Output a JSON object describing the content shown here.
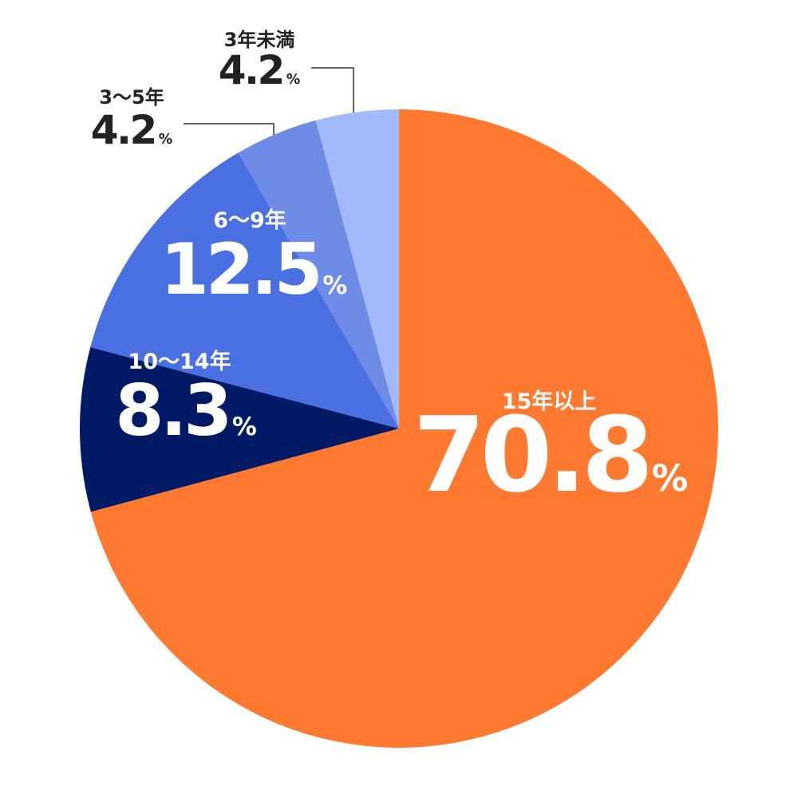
{
  "chart_data": {
    "type": "pie",
    "categories": [
      "15年以上",
      "10〜14年",
      "6〜9年",
      "3〜5年",
      "3年未満"
    ],
    "values": [
      70.8,
      8.3,
      12.5,
      4.2,
      4.2
    ],
    "colors": [
      "#ff7a30",
      "#001a66",
      "#4a6fe0",
      "#6e8be6",
      "#a3bafa"
    ],
    "unit": "%"
  }
}
